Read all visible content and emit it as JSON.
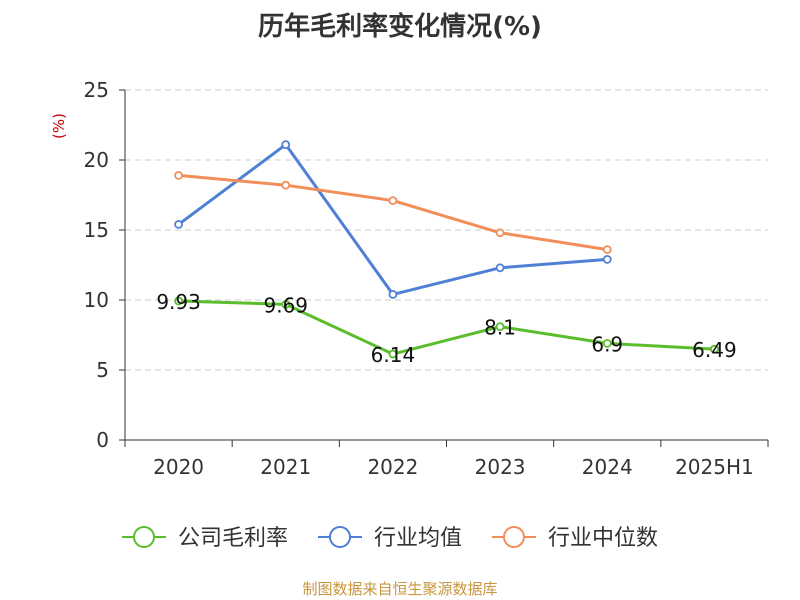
{
  "chart_data": {
    "type": "line",
    "title": "历年毛利率变化情况(%)",
    "ylabel": "(%)",
    "categories": [
      "2020",
      "2021",
      "2022",
      "2023",
      "2024",
      "2025H1"
    ],
    "yticks": [
      "0",
      "5",
      "10",
      "15",
      "20",
      "25"
    ],
    "ylim": [
      0,
      25
    ],
    "grid": true,
    "legend_position": "bottom",
    "series": [
      {
        "name": "公司毛利率",
        "color": "#5bbd2b",
        "values": [
          9.93,
          9.69,
          6.14,
          8.1,
          6.9,
          6.49
        ],
        "labels": [
          "9.93",
          "9.69",
          "6.14",
          "8.1",
          "6.9",
          "6.49"
        ]
      },
      {
        "name": "行业均值",
        "color": "#4f80d6",
        "values": [
          15.4,
          21.1,
          10.4,
          12.3,
          12.9,
          null
        ]
      },
      {
        "name": "行业中位数",
        "color": "#f28e5a",
        "values": [
          18.9,
          18.2,
          17.1,
          14.8,
          13.6,
          null
        ]
      }
    ]
  },
  "footer": {
    "source": "制图数据来自恒生聚源数据库"
  }
}
